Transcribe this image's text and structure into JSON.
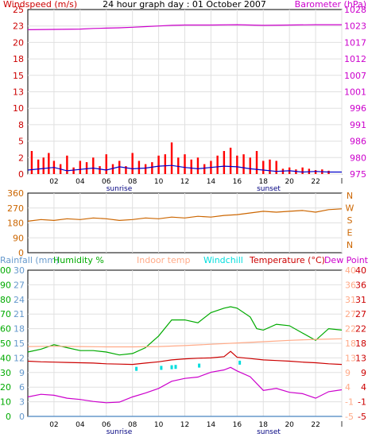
{
  "chart_data": [
    {
      "type": "line",
      "title": "24 hour graph day : 01 October 2007",
      "left_axis_label": "Windspeed (m/s)",
      "right_axis_label": "Barometer (hPa)",
      "x_ticks": [
        "02",
        "04",
        "06",
        "08",
        "10",
        "12",
        "14",
        "16",
        "18",
        "20",
        "22",
        "l"
      ],
      "x_range": [
        0,
        24
      ],
      "grid": true,
      "left_ticks": [
        "0",
        "2",
        "5",
        "8",
        "10",
        "13",
        "15",
        "18",
        "20",
        "23",
        "25"
      ],
      "right_ticks": [
        "975",
        "980",
        "986",
        "991",
        "996",
        "1001",
        "1007",
        "1012",
        "1017",
        "1023",
        "1028"
      ],
      "left_range": [
        0,
        25
      ],
      "right_range": [
        975,
        1028
      ],
      "annotations": {
        "sunrise": "sunrise",
        "sunset": "sunset"
      },
      "sunrise_hour": 7,
      "sunset_hour": 19,
      "colors": {
        "windspeed": "#cc0000",
        "barometer": "#cc00cc",
        "gust_bars": "#ff0000",
        "avg_wind": "#0000cc"
      },
      "series": [
        {
          "name": "Barometer",
          "axis": "right",
          "x": [
            0,
            2,
            4,
            5,
            6,
            7,
            8,
            9,
            10,
            11,
            12,
            14,
            16,
            18,
            20,
            22,
            24
          ],
          "values": [
            1021.5,
            1021.6,
            1021.7,
            1021.9,
            1022.0,
            1022.1,
            1022.3,
            1022.5,
            1022.7,
            1022.9,
            1023.0,
            1023.0,
            1023.1,
            1022.9,
            1023.0,
            1023.1,
            1023.1
          ]
        },
        {
          "name": "Wind gust",
          "axis": "left",
          "style": "bars",
          "x": [
            0.3,
            0.8,
            1.2,
            1.6,
            2.0,
            2.5,
            3.0,
            3.5,
            4.0,
            4.5,
            5.0,
            5.5,
            6.0,
            6.5,
            7.0,
            7.5,
            8.0,
            8.5,
            9.0,
            9.5,
            10.0,
            10.5,
            11.0,
            11.5,
            12.0,
            12.5,
            13.0,
            13.5,
            14.0,
            14.5,
            15.0,
            15.5,
            16.0,
            16.5,
            17.0,
            17.5,
            18.0,
            18.5,
            19.0,
            19.5,
            20.0,
            20.5,
            21.0,
            21.5,
            22.0,
            22.5,
            23.0
          ],
          "values": [
            3.5,
            2.2,
            2.5,
            3.2,
            2.0,
            1.5,
            2.8,
            1.0,
            2.0,
            1.8,
            2.5,
            1.2,
            3.0,
            1.5,
            2.0,
            1.2,
            3.2,
            2.0,
            1.5,
            1.8,
            2.8,
            3.0,
            4.8,
            2.5,
            3.0,
            2.2,
            2.5,
            1.5,
            2.0,
            2.8,
            3.5,
            4.0,
            2.8,
            3.0,
            2.5,
            3.5,
            2.0,
            2.2,
            2.0,
            0.8,
            1.0,
            0.7,
            1.0,
            0.8,
            0.6,
            0.7,
            0.5
          ]
        },
        {
          "name": "Wind average",
          "axis": "left",
          "x": [
            0,
            1,
            2,
            3,
            4,
            5,
            6,
            7,
            8,
            9,
            10,
            11,
            12,
            13,
            14,
            15,
            16,
            17,
            18,
            19,
            20,
            21,
            22,
            23,
            24
          ],
          "values": [
            0.6,
            0.8,
            1.0,
            0.5,
            0.7,
            0.9,
            0.6,
            1.1,
            0.8,
            0.9,
            1.2,
            1.3,
            1.0,
            0.8,
            1.0,
            1.2,
            1.1,
            0.8,
            0.6,
            0.4,
            0.5,
            0.3,
            0.4,
            0.3,
            0.3
          ]
        }
      ]
    },
    {
      "type": "line",
      "title": "",
      "left_ticks": [
        "0",
        "90",
        "180",
        "270",
        "360"
      ],
      "right_ticks": [
        "N",
        "E",
        "S",
        "W",
        "N"
      ],
      "left_range": [
        0,
        360
      ],
      "x_range": [
        0,
        24
      ],
      "grid": true,
      "series": [
        {
          "name": "Wind direction",
          "axis": "left",
          "color": "#cc6600",
          "x": [
            0,
            1,
            2,
            3,
            4,
            5,
            6,
            7,
            8,
            9,
            10,
            11,
            12,
            13,
            14,
            15,
            16,
            17,
            18,
            19,
            20,
            21,
            22,
            23,
            24
          ],
          "values": [
            190,
            200,
            195,
            205,
            200,
            210,
            205,
            195,
            200,
            210,
            205,
            215,
            210,
            220,
            215,
            225,
            230,
            240,
            250,
            245,
            250,
            255,
            245,
            260,
            265
          ]
        }
      ]
    },
    {
      "type": "line",
      "title": "",
      "legend": [
        {
          "label": "Rainfall (mm)",
          "color": "#6699cc"
        },
        {
          "label": "Humidity %",
          "color": "#00aa00"
        },
        {
          "label": "Indoor temp",
          "color": "#ffaa88"
        },
        {
          "label": "Windchill",
          "color": "#00dddd"
        },
        {
          "label": "Temperature (°C)",
          "color": "#cc0000"
        },
        {
          "label": "Dew Point",
          "color": "#cc00cc"
        }
      ],
      "x_ticks": [
        "02",
        "04",
        "06",
        "08",
        "10",
        "12",
        "14",
        "16",
        "18",
        "20",
        "22",
        "l"
      ],
      "x_range": [
        0,
        24
      ],
      "grid": true,
      "annotations": {
        "sunrise": "sunrise",
        "sunset": "sunset"
      },
      "rain_ticks": [
        "0",
        "3",
        "6",
        "9",
        "12",
        "15",
        "18",
        "21",
        "24",
        "27",
        "30"
      ],
      "humidity_ticks": [
        "0",
        "10",
        "20",
        "30",
        "40",
        "50",
        "60",
        "70",
        "80",
        "90",
        "100"
      ],
      "indoor_ticks": [
        "-5",
        "-1",
        "4",
        "9",
        "13",
        "18",
        "22",
        "27",
        "31",
        "36",
        "40"
      ],
      "temp_ticks": [
        "-5",
        "-1",
        "4",
        "9",
        "13",
        "18",
        "22",
        "27",
        "31",
        "36",
        "40"
      ],
      "temp_range": [
        -5,
        40
      ],
      "humidity_range": [
        0,
        100
      ],
      "series": [
        {
          "name": "Humidity %",
          "axis": "humidity",
          "x": [
            0,
            1,
            2,
            3,
            4,
            5,
            6,
            7,
            8,
            9,
            10,
            11,
            12,
            13,
            14,
            15,
            15.5,
            16,
            17,
            17.5,
            18,
            19,
            20,
            21,
            22,
            23,
            24
          ],
          "values": [
            44,
            46,
            49,
            47,
            45,
            45,
            44,
            42,
            43,
            47,
            55,
            66,
            66,
            64,
            71,
            74,
            75,
            74,
            68,
            60,
            59,
            63,
            62,
            57,
            52,
            60,
            59
          ]
        },
        {
          "name": "Indoor temp",
          "axis": "temp",
          "x": [
            0,
            2,
            4,
            6,
            8,
            10,
            12,
            14,
            16,
            18,
            20,
            22,
            24
          ],
          "values": [
            16.5,
            16.6,
            16.5,
            16.4,
            16.4,
            16.5,
            16.8,
            17.2,
            17.6,
            18.0,
            18.4,
            18.7,
            18.9
          ]
        },
        {
          "name": "Temperature (°C)",
          "axis": "temp",
          "x": [
            0,
            1,
            2,
            3,
            4,
            5,
            6,
            7,
            8,
            9,
            10,
            11,
            12,
            13,
            14,
            15,
            15.5,
            16,
            17,
            18,
            19,
            20,
            21,
            22,
            23,
            24
          ],
          "values": [
            12.0,
            11.8,
            11.7,
            11.6,
            11.5,
            11.4,
            11.2,
            11.1,
            11.0,
            11.4,
            11.8,
            12.4,
            12.7,
            12.9,
            13.0,
            13.4,
            15.0,
            13.2,
            12.8,
            12.4,
            12.2,
            12.0,
            11.7,
            11.5,
            11.2,
            11.0
          ]
        },
        {
          "name": "Windchill",
          "axis": "temp",
          "style": "bars",
          "x": [
            8.3,
            10.2,
            11.0,
            11.3,
            13.1,
            16.2
          ],
          "values": [
            10.0,
            10.3,
            10.5,
            10.6,
            11.0,
            11.9
          ]
        },
        {
          "name": "Dew Point",
          "axis": "temp",
          "x": [
            0,
            1,
            2,
            3,
            4,
            5,
            6,
            7,
            8,
            9,
            10,
            11,
            12,
            13,
            14,
            15,
            15.5,
            16,
            17,
            18,
            19,
            20,
            21,
            22,
            23,
            24
          ],
          "values": [
            1.0,
            1.8,
            1.5,
            0.6,
            0.2,
            -0.4,
            -0.8,
            -0.6,
            1.0,
            2.2,
            3.6,
            5.8,
            6.7,
            7.1,
            8.6,
            9.3,
            10.1,
            9.0,
            7.2,
            3.0,
            3.6,
            2.4,
            2.0,
            0.6,
            2.6,
            3.2
          ]
        },
        {
          "name": "Rainfall (mm)",
          "axis": "rain",
          "x": [
            0,
            24
          ],
          "values": [
            0,
            0
          ]
        }
      ]
    }
  ]
}
